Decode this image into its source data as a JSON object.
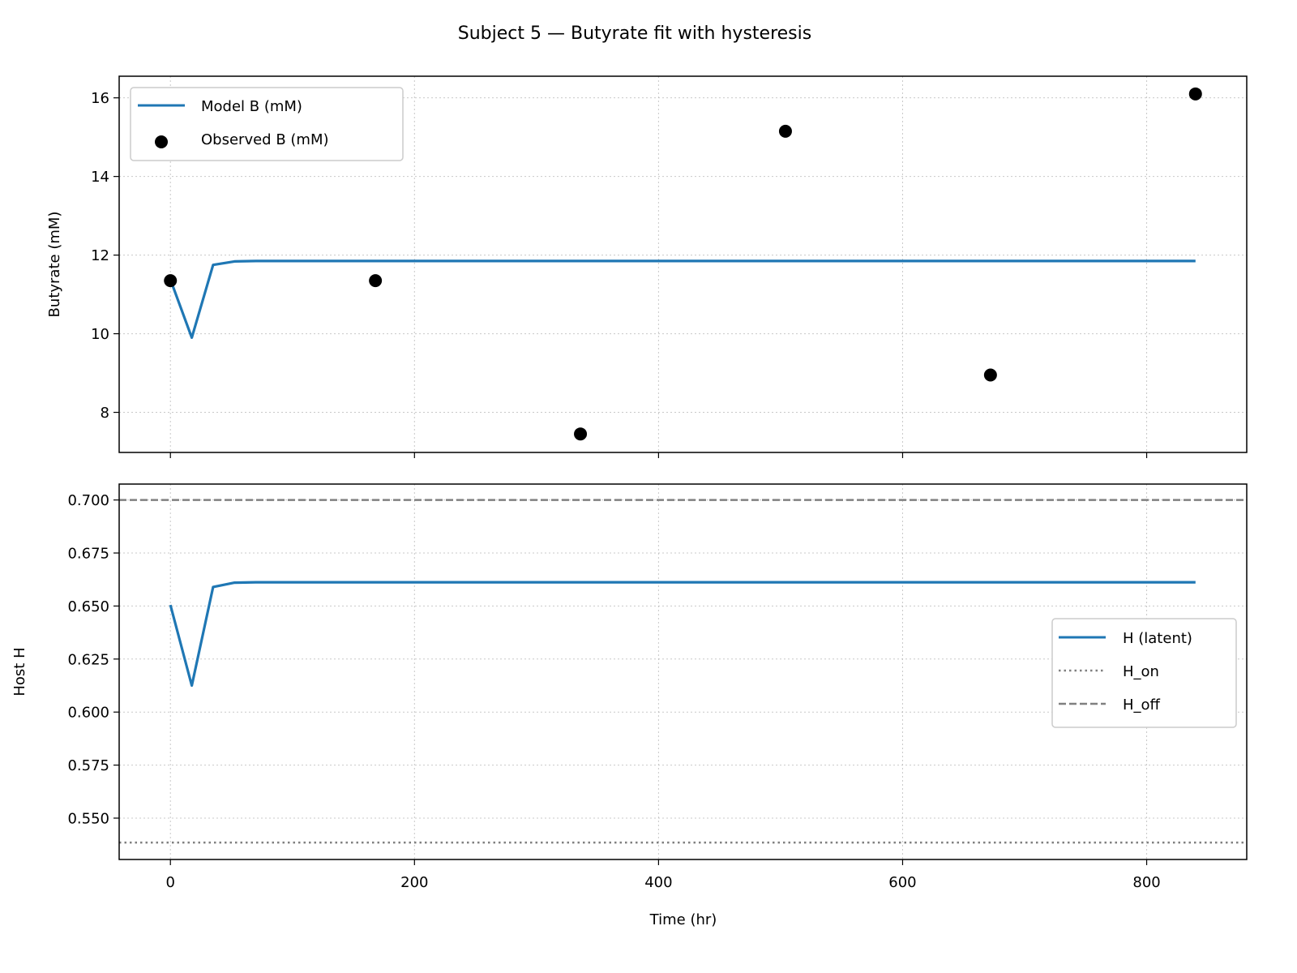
{
  "figure": {
    "title": "Subject 5 — Butyrate fit with hysteresis",
    "xlabel": "Time (hr)",
    "x_ticks": [
      0,
      200,
      400,
      600,
      800
    ]
  },
  "colors": {
    "model": "#1f77b4",
    "observed": "#000000",
    "threshold": "#808080",
    "grid": "#b0b0b0"
  },
  "chart_data": [
    {
      "type": "line",
      "ylabel": "Butyrate (mM)",
      "xlim": [
        -42,
        882
      ],
      "ylim": [
        6.98,
        16.55
      ],
      "y_ticks": [
        8,
        10,
        12,
        14,
        16
      ],
      "y_tick_labels": [
        "8",
        "10",
        "12",
        "14",
        "16"
      ],
      "grid": true,
      "legend": "upper-left",
      "series": [
        {
          "name": "Model B (mM)",
          "kind": "line",
          "x": [
            0,
            17.5,
            35,
            52.5,
            70,
            140,
            280,
            420,
            560,
            700,
            840
          ],
          "y": [
            11.38,
            9.9,
            11.75,
            11.84,
            11.85,
            11.85,
            11.85,
            11.85,
            11.85,
            11.85,
            11.85
          ]
        },
        {
          "name": "Observed B (mM)",
          "kind": "scatter",
          "x": [
            0,
            168,
            336,
            504,
            672,
            840
          ],
          "y": [
            11.35,
            11.35,
            7.45,
            15.15,
            8.95,
            16.1
          ]
        }
      ]
    },
    {
      "type": "line",
      "ylabel": "Host H",
      "xlim": [
        -42,
        882
      ],
      "ylim": [
        0.5305,
        0.7075
      ],
      "y_ticks": [
        0.55,
        0.575,
        0.6,
        0.625,
        0.65,
        0.675,
        0.7
      ],
      "y_tick_labels": [
        "0.550",
        "0.575",
        "0.600",
        "0.625",
        "0.650",
        "0.675",
        "0.700"
      ],
      "grid": true,
      "legend": "center-right",
      "series": [
        {
          "name": "H (latent)",
          "kind": "line",
          "x": [
            0,
            17.5,
            35,
            52.5,
            70,
            140,
            280,
            420,
            560,
            700,
            840
          ],
          "y": [
            0.6505,
            0.6125,
            0.659,
            0.661,
            0.6612,
            0.6612,
            0.6612,
            0.6612,
            0.6612,
            0.6612,
            0.6612
          ]
        },
        {
          "name": "H_on",
          "kind": "hline",
          "style": "dotted",
          "y": 0.5385
        },
        {
          "name": "H_off",
          "kind": "hline",
          "style": "dashed",
          "y": 0.7
        }
      ]
    }
  ]
}
